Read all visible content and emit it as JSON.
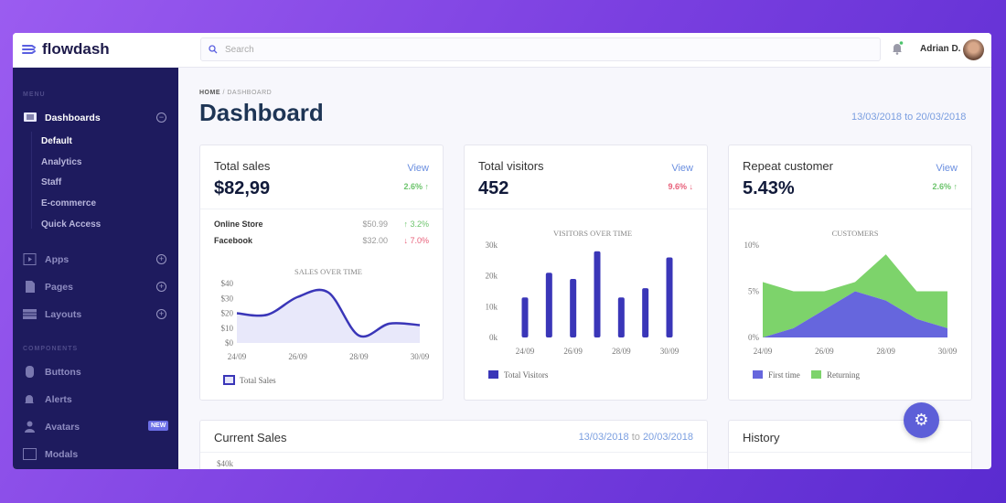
{
  "app": {
    "name": "flowdash"
  },
  "topbar": {
    "search_placeholder": "Search",
    "user_name": "Adrian D."
  },
  "sidebar": {
    "menu_label": "MENU",
    "components_label": "COMPONENTS",
    "dashboards": "Dashboards",
    "sub_items": [
      "Default",
      "Analytics",
      "Staff",
      "E-commerce",
      "Quick Access"
    ],
    "apps": "Apps",
    "pages": "Pages",
    "layouts": "Layouts",
    "buttons": "Buttons",
    "alerts": "Alerts",
    "avatars": "Avatars",
    "avatars_badge": "NEW",
    "modals": "Modals"
  },
  "page": {
    "breadcrumb_home": "HOME",
    "breadcrumb_sep": "/",
    "breadcrumb_current": "DASHBOARD",
    "title": "Dashboard",
    "date_range": "13/03/2018 to 20/03/2018"
  },
  "cards": {
    "sales": {
      "title": "Total sales",
      "value": "$82,99",
      "view": "View",
      "change": "2.6% ↑",
      "change_color": "#6cc46c",
      "rows": [
        {
          "label": "Online Store",
          "amount": "$50.99",
          "change": "↑ 3.2%"
        },
        {
          "label": "Facebook",
          "amount": "$32.00",
          "change": "↓ 7.0%"
        }
      ]
    },
    "visitors": {
      "title": "Total visitors",
      "value": "452",
      "view": "View",
      "change": "9.6% ↓",
      "change_color": "#e8607a"
    },
    "repeat": {
      "title": "Repeat customer",
      "value": "5.43%",
      "view": "View",
      "change": "2.6% ↑",
      "change_color": "#6cc46c"
    },
    "current_sales": {
      "title": "Current Sales",
      "from": "13/03/2018",
      "to_word": "to",
      "to": "20/03/2018",
      "first_tick": "$40k"
    },
    "history": {
      "title": "History"
    }
  },
  "chart_data": [
    {
      "type": "area",
      "title": "SALES OVER TIME",
      "categories": [
        "24/09",
        "25/09",
        "26/09",
        "27/09",
        "28/09",
        "29/09",
        "30/09"
      ],
      "x_tick_labels": [
        "24/09",
        "26/09",
        "28/09",
        "30/09"
      ],
      "y_ticks": [
        "$0",
        "$10",
        "$20",
        "$30",
        "$40"
      ],
      "ylim": [
        0,
        40
      ],
      "series": [
        {
          "name": "Total Sales",
          "values": [
            20,
            19,
            31,
            34,
            5,
            13,
            12
          ],
          "color": "#3a36b8"
        }
      ],
      "legend": "bottom-left"
    },
    {
      "type": "bar",
      "title": "VISITORS OVER TIME",
      "categories": [
        "24/09",
        "25/09",
        "26/09",
        "27/09",
        "28/09",
        "29/09",
        "30/09"
      ],
      "x_tick_labels": [
        "24/09",
        "26/09",
        "28/09",
        "30/09"
      ],
      "y_ticks": [
        "0k",
        "10k",
        "20k",
        "30k"
      ],
      "ylim": [
        0,
        30000
      ],
      "series": [
        {
          "name": "Total Visitors",
          "values": [
            13000,
            21000,
            19000,
            28000,
            13000,
            16000,
            26000
          ],
          "color": "#3a36b8"
        }
      ],
      "legend": "bottom-left"
    },
    {
      "type": "area",
      "stacked": true,
      "title": "CUSTOMERS",
      "categories": [
        "24/09",
        "25/09",
        "26/09",
        "27/09",
        "28/09",
        "29/09",
        "30/09"
      ],
      "x_tick_labels": [
        "24/09",
        "26/09",
        "28/09",
        "30/09"
      ],
      "y_ticks": [
        "0%",
        "5%",
        "10%"
      ],
      "ylim": [
        0,
        10
      ],
      "series": [
        {
          "name": "First time",
          "values": [
            0,
            1,
            3,
            5,
            4,
            2,
            1
          ],
          "color": "#6666dd"
        },
        {
          "name": "Returning",
          "values": [
            6,
            4,
            2,
            1,
            5,
            3,
            4
          ],
          "color": "#7dd36b"
        }
      ],
      "legend": "bottom-left"
    }
  ]
}
